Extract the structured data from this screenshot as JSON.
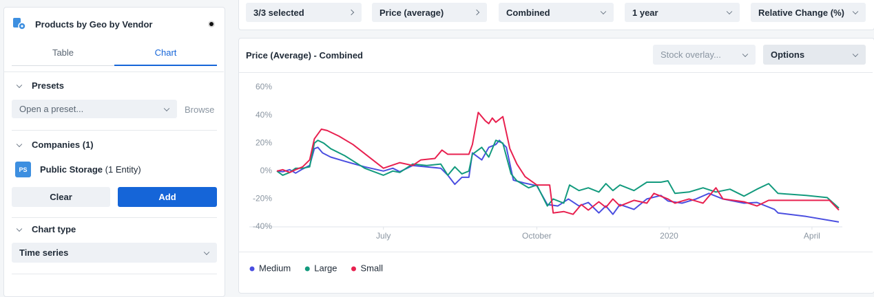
{
  "sidebar": {
    "title": "Products by Geo by Vendor",
    "tabs": [
      "Table",
      "Chart"
    ],
    "presets": {
      "label": "Presets",
      "placeholder": "Open a preset...",
      "browse": "Browse"
    },
    "companies": {
      "label": "Companies",
      "count": "(1)",
      "badge": "PS",
      "name": "Public Storage",
      "entities": "(1 Entity)",
      "clear": "Clear",
      "add": "Add"
    },
    "chart_type": {
      "label": "Chart type",
      "value": "Time series"
    }
  },
  "toolbar": {
    "dropdowns": [
      "3/3 selected",
      "Price (average)",
      "Combined",
      "1 year",
      "Relative Change (%)"
    ]
  },
  "panel": {
    "stock_overlay": "Stock overlay...",
    "options": "Options"
  },
  "chart_data": {
    "type": "line",
    "title": "Price (Average) - Combined",
    "xlim": [
      0,
      48
    ],
    "ylim": [
      -40,
      60
    ],
    "xticks": [
      {
        "value": 9.1,
        "label": "July"
      },
      {
        "value": 22.2,
        "label": "October"
      },
      {
        "value": 33.5,
        "label": "2020"
      },
      {
        "value": 45.7,
        "label": "April"
      }
    ],
    "yticks": [
      {
        "value": 60,
        "label": "60%"
      },
      {
        "value": 40,
        "label": "40%"
      },
      {
        "value": 20,
        "label": "20%"
      },
      {
        "value": 0,
        "label": "0%"
      },
      {
        "value": -20,
        "label": "-20%"
      },
      {
        "value": -40,
        "label": "-40%"
      }
    ],
    "grid": false,
    "series": [
      {
        "name": "Medium",
        "color": "#4a4ee0",
        "x": [
          0,
          0.5,
          1.1,
          1.6,
          2.2,
          2.8,
          3.2,
          3.5,
          3.9,
          4.6,
          5.8,
          7.5,
          9.1,
          9.9,
          10.5,
          11.6,
          12.8,
          14,
          14.6,
          15.2,
          15.8,
          16.4,
          16.7,
          17.5,
          18.1,
          18.7,
          19,
          19.6,
          20.2,
          21.1,
          22.2,
          23.1,
          24,
          24.9,
          25.8,
          26.6,
          27.5,
          28.1,
          28.7,
          29.3,
          30.5,
          31.6,
          32.8,
          33.4,
          34.6,
          35.8,
          36.9,
          38.1,
          39.9,
          41,
          42.5,
          42.8,
          45.2,
          48
        ],
        "values": [
          0,
          -0.5,
          1,
          -1.5,
          1.5,
          4,
          16,
          17,
          13,
          10,
          7,
          3,
          0,
          2,
          -0.5,
          4,
          3,
          2,
          -3,
          -9.5,
          -4.5,
          -4.5,
          13,
          8,
          17,
          19,
          22,
          17,
          -6.5,
          -8.5,
          -10.5,
          -24,
          -25,
          -20,
          -25,
          -22.5,
          -30,
          -25,
          -31,
          -24,
          -27.5,
          -20,
          -17.5,
          -21.5,
          -23,
          -20,
          -16,
          -20,
          -23,
          -22.5,
          -27.5,
          -30,
          -32.5,
          -36.5
        ]
      },
      {
        "name": "Large",
        "color": "#129a7d",
        "x": [
          0,
          0.5,
          1.1,
          1.6,
          2.2,
          2.8,
          3.2,
          3.5,
          4,
          4.6,
          5.8,
          7.5,
          9.1,
          9.9,
          10.5,
          11.6,
          12.8,
          14,
          14.6,
          15.2,
          15.8,
          16.4,
          16.7,
          17.5,
          18.1,
          18.7,
          19.3,
          20,
          20.5,
          21.5,
          22.2,
          23.1,
          23.6,
          24.5,
          25,
          25.8,
          26.6,
          27.5,
          28.1,
          28.7,
          29.3,
          30.5,
          31.6,
          32.8,
          33.4,
          34,
          35.2,
          36.4,
          37.5,
          38.7,
          39.9,
          41,
          42,
          42.8,
          45.2,
          47,
          48
        ],
        "values": [
          0,
          -3,
          -1,
          2,
          2,
          3,
          20,
          22,
          20,
          16,
          11,
          2,
          -3,
          0,
          -1,
          5,
          4,
          5,
          -3,
          3,
          -2,
          0,
          12,
          17,
          10,
          22,
          20,
          -2,
          -7,
          -12,
          -10,
          -25,
          -20,
          -23,
          -10,
          -14,
          -12,
          -15,
          -9,
          -14,
          -10,
          -14,
          -8,
          -8,
          -7,
          -16,
          -15,
          -12,
          -15,
          -13,
          -18,
          -13,
          -9,
          -16,
          -17.5,
          -19,
          -26.5
        ]
      },
      {
        "name": "Small",
        "color": "#e8204f",
        "x": [
          0,
          0.5,
          1.1,
          1.6,
          2.2,
          2.8,
          3.2,
          3.8,
          4.3,
          5.3,
          6.5,
          9.1,
          10.5,
          11.6,
          12.3,
          13.5,
          14.1,
          14.6,
          15.8,
          16.4,
          16.7,
          17.2,
          17.8,
          18.1,
          18.4,
          18.7,
          19.3,
          19.9,
          20.5,
          21.2,
          22.2,
          23.3,
          23.6,
          24.5,
          25.3,
          26,
          26.6,
          27.5,
          28.1,
          28.7,
          29.3,
          30.5,
          31.6,
          32.2,
          33.4,
          34,
          35.2,
          36.4,
          37.5,
          38.1,
          39.9,
          41,
          42,
          45.2,
          47.2,
          48
        ],
        "values": [
          0,
          1,
          -1,
          1,
          3,
          8,
          23,
          30,
          29,
          25,
          19,
          2,
          6,
          4,
          8,
          9,
          15,
          12,
          12,
          12,
          19,
          42,
          36,
          34,
          38,
          35,
          39,
          16,
          5,
          -4,
          -10,
          -10,
          -30,
          -29,
          -31,
          -24,
          -28,
          -22,
          -26,
          -20,
          -25,
          -21,
          -23,
          -16,
          -20,
          -23,
          -20,
          -23,
          -12,
          -20,
          -22,
          -25,
          -21,
          -21,
          -21,
          -28
        ]
      }
    ]
  }
}
